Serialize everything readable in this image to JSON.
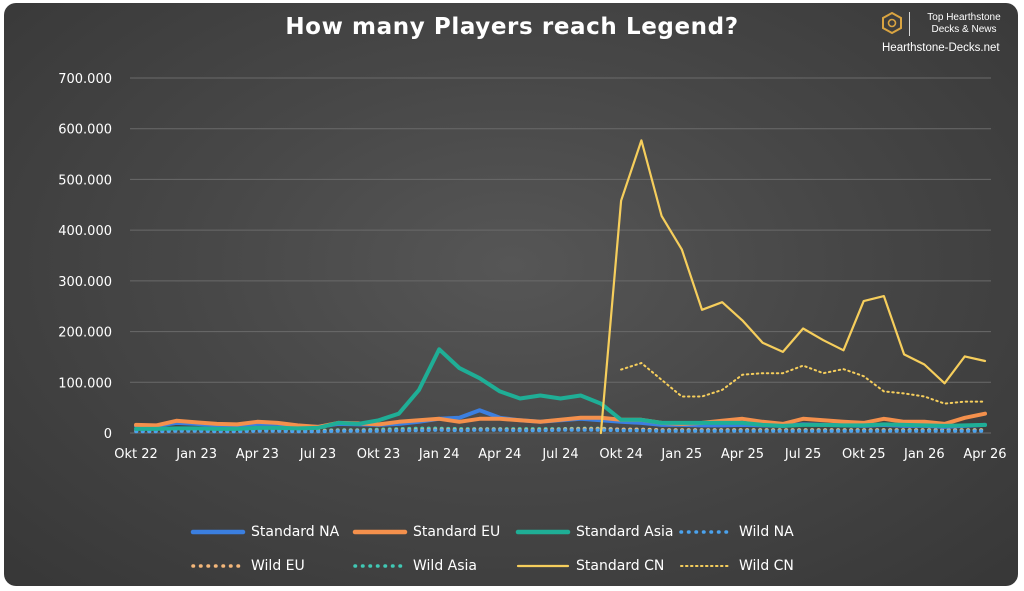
{
  "brand": {
    "tagline_1": "Top Hearthstone",
    "tagline_2": "Decks & News",
    "site": "Hearthstone-Decks.net"
  },
  "chart_data": {
    "type": "line",
    "title": "How many Players reach Legend?",
    "xlabel": "",
    "ylabel": "",
    "ylim": [
      0,
      700000
    ],
    "yticks": [
      "0",
      "100.000",
      "200.000",
      "300.000",
      "400.000",
      "500.000",
      "600.000",
      "700.000"
    ],
    "xticks": [
      "Okt 22",
      "Jan 23",
      "Apr 23",
      "Jul 23",
      "Okt 23",
      "Jan 24",
      "Apr 24",
      "Jul 24",
      "Okt 24",
      "Jan 25",
      "Apr 25",
      "Jul 25",
      "Okt 25",
      "Jan 26",
      "Apr 26"
    ],
    "grid": "horizontal",
    "legend_position": "bottom",
    "x": [
      "Okt 22",
      "Nov 22",
      "Dez 22",
      "Jan 23",
      "Feb 23",
      "Mär 23",
      "Apr 23",
      "Mai 23",
      "Jun 23",
      "Jul 23",
      "Aug 23",
      "Sep 23",
      "Okt 23",
      "Nov 23",
      "Dez 23",
      "Jan 24",
      "Feb 24",
      "Mär 24",
      "Apr 24",
      "Mai 24",
      "Jun 24",
      "Jul 24",
      "Aug 24",
      "Sep 24",
      "Okt 24",
      "Nov 24",
      "Dez 24",
      "Jan 25",
      "Feb 25",
      "Mär 25",
      "Apr 25",
      "Mai 25",
      "Jun 25",
      "Jul 25",
      "Aug 25",
      "Sep 25",
      "Okt 25",
      "Nov 25",
      "Dez 25",
      "Jan 26",
      "Feb 26",
      "Mär 26",
      "Apr 26"
    ],
    "series": [
      {
        "name": "Standard NA",
        "color": "#3b7fe0",
        "style": "solid",
        "values": [
          14000,
          14000,
          20000,
          18000,
          15000,
          15000,
          18000,
          18000,
          14000,
          12000,
          18000,
          17000,
          16000,
          18000,
          22000,
          28000,
          30000,
          45000,
          30000,
          25000,
          22000,
          25000,
          28000,
          25000,
          22000,
          20000,
          16000,
          16000,
          15000,
          15000,
          16000,
          15000,
          14000,
          17000,
          16000,
          15000,
          14000,
          16000,
          14000,
          14000,
          12000,
          14000,
          16000
        ]
      },
      {
        "name": "Standard EU",
        "color": "#f4904c",
        "style": "solid",
        "values": [
          16000,
          15000,
          24000,
          21000,
          18000,
          17000,
          22000,
          20000,
          15000,
          12000,
          20000,
          19000,
          17000,
          22000,
          25000,
          28000,
          22000,
          28000,
          28000,
          25000,
          22000,
          26000,
          30000,
          30000,
          26000,
          26000,
          20000,
          18000,
          20000,
          24000,
          28000,
          22000,
          18000,
          28000,
          25000,
          22000,
          20000,
          28000,
          22000,
          22000,
          18000,
          30000,
          38000
        ]
      },
      {
        "name": "Standard Asia",
        "color": "#1fae96",
        "style": "solid",
        "values": [
          8000,
          8000,
          9000,
          9000,
          8000,
          8000,
          10000,
          10000,
          9000,
          10000,
          20000,
          18000,
          25000,
          38000,
          85000,
          165000,
          128000,
          108000,
          82000,
          68000,
          74000,
          68000,
          74000,
          58000,
          26000,
          26000,
          20000,
          20000,
          20000,
          20000,
          20000,
          16000,
          14000,
          16000,
          16000,
          15000,
          15000,
          17000,
          16000,
          15000,
          14000,
          15000,
          16000
        ]
      },
      {
        "name": "Wild NA",
        "color": "#4ba3ee",
        "style": "dotted",
        "values": [
          3000,
          3000,
          4000,
          4000,
          3000,
          3000,
          4000,
          4000,
          3000,
          3000,
          4000,
          4000,
          4000,
          5000,
          5000,
          6000,
          5000,
          6000,
          6000,
          5000,
          5000,
          6000,
          6000,
          6000,
          5000,
          5000,
          4000,
          4000,
          4000,
          4000,
          4000,
          4000,
          4000,
          4000,
          4000,
          4000,
          4000,
          4000,
          4000,
          4000,
          4000,
          4000,
          4000
        ]
      },
      {
        "name": "Wild EU",
        "color": "#f4b77a",
        "style": "dotted",
        "values": [
          4000,
          4000,
          5000,
          5000,
          4000,
          4000,
          5000,
          5000,
          4000,
          4000,
          5000,
          5000,
          5000,
          6000,
          6000,
          7000,
          6000,
          7000,
          7000,
          6000,
          6000,
          7000,
          8000,
          8000,
          7000,
          7000,
          6000,
          6000,
          6000,
          6000,
          6000,
          6000,
          6000,
          6000,
          6000,
          6000,
          6000,
          6000,
          6000,
          6000,
          6000,
          6000,
          6000
        ]
      },
      {
        "name": "Wild Asia",
        "color": "#40c8b4",
        "style": "dotted",
        "values": [
          5000,
          5000,
          5000,
          5000,
          5000,
          5000,
          5000,
          5000,
          5000,
          5000,
          6000,
          6000,
          7000,
          8000,
          9000,
          9000,
          8000,
          8000,
          8000,
          8000,
          8000,
          8000,
          9000,
          9000,
          7000,
          7000,
          6000,
          6000,
          6000,
          6000,
          6000,
          6000,
          6000,
          6000,
          6000,
          6000,
          6000,
          6000,
          6000,
          6000,
          6000,
          6000,
          6000
        ]
      },
      {
        "name": "Standard CN",
        "color": "#f6ce5c",
        "style": "solid",
        "values": [
          null,
          null,
          null,
          null,
          null,
          null,
          null,
          null,
          null,
          null,
          null,
          null,
          null,
          null,
          null,
          null,
          null,
          null,
          null,
          null,
          null,
          null,
          null,
          0,
          458000,
          577000,
          428000,
          362000,
          243000,
          258000,
          222000,
          178000,
          160000,
          206000,
          183000,
          163000,
          260000,
          270000,
          155000,
          135000,
          98000,
          151000,
          142000
        ]
      },
      {
        "name": "Wild CN",
        "color": "#f6ce5c",
        "style": "dotted",
        "values": [
          null,
          null,
          null,
          null,
          null,
          null,
          null,
          null,
          null,
          null,
          null,
          null,
          null,
          null,
          null,
          null,
          null,
          null,
          null,
          null,
          null,
          null,
          null,
          null,
          125000,
          138000,
          105000,
          72000,
          72000,
          85000,
          115000,
          118000,
          118000,
          133000,
          118000,
          126000,
          112000,
          82000,
          78000,
          72000,
          58000,
          62000,
          62000
        ]
      }
    ]
  }
}
